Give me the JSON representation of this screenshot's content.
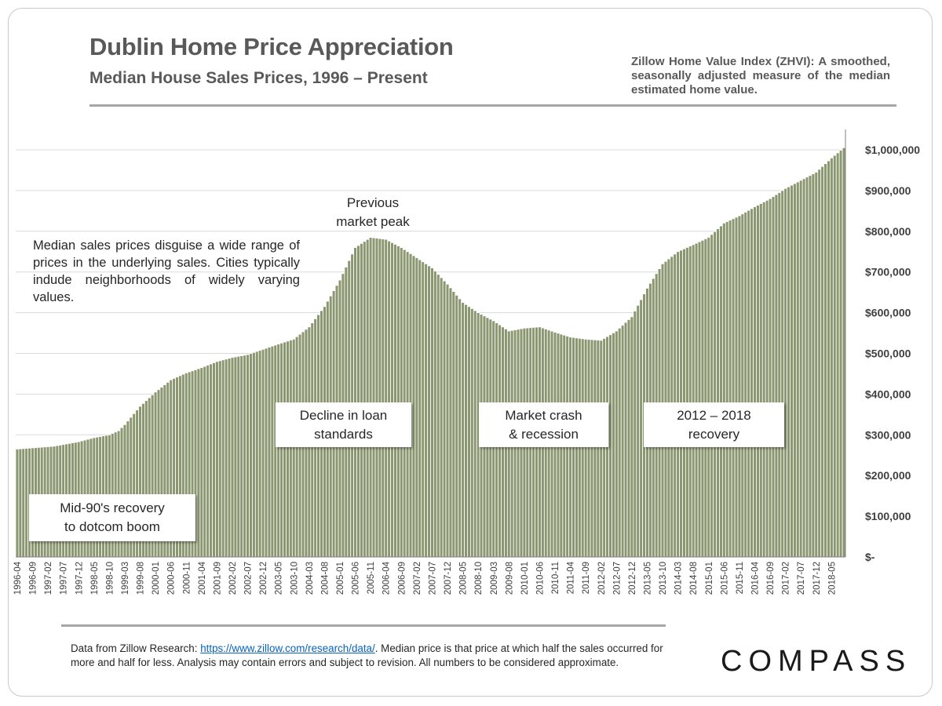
{
  "header": {
    "title": "Dublin Home Price Appreciation",
    "subtitle": "Median House Sales Prices, 1996 – Present",
    "zhvi_note": "Zillow Home Value Index (ZHVI): A smoothed, seasonally adjusted measure of the median estimated home value."
  },
  "annotations": {
    "median_note": "Median sales prices disguise a wide range of prices in the underlying sales. Cities typically indude neighborhoods of widely varying values.",
    "peak_label": "Previous\nmarket peak",
    "callout_1": "Mid-90's recovery\nto dotcom boom",
    "callout_2": "Decline in loan\nstandards",
    "callout_3": "Market crash\n& recession",
    "callout_4": "2012 – 2018\nrecovery"
  },
  "footer": {
    "footnote_prefix": "Data from Zillow Research: ",
    "footnote_link": "https://www.zillow.com/research/data/",
    "footnote_suffix": ". Median price is that price at which half the sales occurred for more and half for less. Analysis may contain errors and subject to revision. All numbers to be considered approximate.",
    "logo": "COMPASS"
  },
  "colors": {
    "bar_fill": "#8b9770",
    "bar_stroke": "#ffffff",
    "gridline": "#d9d9d9",
    "text": "#262626",
    "rule": "#a6a6a6",
    "link": "#0563c1"
  },
  "chart_data": {
    "type": "bar",
    "title": "Dublin Home Price Appreciation",
    "subtitle": "Median House Sales Prices, 1996 – Present",
    "xlabel": "",
    "ylabel": "",
    "x_start": "1996-04",
    "x_end": "2018-09",
    "x_frequency": "monthly",
    "x_tick_labels": [
      "1996-04",
      "1996-09",
      "1997-02",
      "1997-07",
      "1997-12",
      "1998-05",
      "1998-10",
      "1999-03",
      "1999-08",
      "2000-01",
      "2000-06",
      "2000-11",
      "2001-04",
      "2001-09",
      "2002-02",
      "2002-07",
      "2002-12",
      "2003-05",
      "2003-10",
      "2004-03",
      "2004-08",
      "2005-01",
      "2005-06",
      "2005-11",
      "2006-04",
      "2006-09",
      "2007-02",
      "2007-07",
      "2007-12",
      "2008-05",
      "2008-10",
      "2009-03",
      "2009-08",
      "2010-01",
      "2010-06",
      "2010-11",
      "2011-04",
      "2011-09",
      "2012-02",
      "2012-07",
      "2012-12",
      "2013-05",
      "2013-10",
      "2014-03",
      "2014-08",
      "2015-01",
      "2015-06",
      "2015-11",
      "2016-04",
      "2016-09",
      "2017-02",
      "2017-07",
      "2017-12",
      "2018-05"
    ],
    "anchor_values": [
      [
        "1996-04",
        265000
      ],
      [
        "1997-04",
        272000
      ],
      [
        "1997-12",
        283000
      ],
      [
        "1998-05",
        293000
      ],
      [
        "1998-10",
        300000
      ],
      [
        "1999-01",
        310000
      ],
      [
        "1999-03",
        325000
      ],
      [
        "1999-08",
        370000
      ],
      [
        "2000-01",
        405000
      ],
      [
        "2000-06",
        435000
      ],
      [
        "2000-11",
        452000
      ],
      [
        "2001-04",
        465000
      ],
      [
        "2001-09",
        480000
      ],
      [
        "2002-02",
        490000
      ],
      [
        "2002-07",
        497000
      ],
      [
        "2002-12",
        510000
      ],
      [
        "2003-05",
        523000
      ],
      [
        "2003-10",
        535000
      ],
      [
        "2004-03",
        565000
      ],
      [
        "2004-08",
        615000
      ],
      [
        "2005-01",
        680000
      ],
      [
        "2005-06",
        760000
      ],
      [
        "2005-11",
        785000
      ],
      [
        "2006-04",
        780000
      ],
      [
        "2006-09",
        760000
      ],
      [
        "2007-02",
        735000
      ],
      [
        "2007-07",
        710000
      ],
      [
        "2007-12",
        670000
      ],
      [
        "2008-05",
        625000
      ],
      [
        "2008-10",
        600000
      ],
      [
        "2009-03",
        580000
      ],
      [
        "2009-08",
        555000
      ],
      [
        "2010-01",
        562000
      ],
      [
        "2010-06",
        565000
      ],
      [
        "2010-11",
        552000
      ],
      [
        "2011-04",
        540000
      ],
      [
        "2011-09",
        535000
      ],
      [
        "2012-02",
        532000
      ],
      [
        "2012-07",
        555000
      ],
      [
        "2012-12",
        590000
      ],
      [
        "2013-05",
        660000
      ],
      [
        "2013-10",
        720000
      ],
      [
        "2014-03",
        750000
      ],
      [
        "2014-08",
        767000
      ],
      [
        "2015-01",
        785000
      ],
      [
        "2015-06",
        820000
      ],
      [
        "2015-11",
        838000
      ],
      [
        "2016-04",
        860000
      ],
      [
        "2016-09",
        880000
      ],
      [
        "2017-02",
        905000
      ],
      [
        "2017-07",
        925000
      ],
      [
        "2017-12",
        945000
      ],
      [
        "2018-05",
        980000
      ],
      [
        "2018-09",
        1005000
      ]
    ],
    "y_ticks": [
      0,
      100000,
      200000,
      300000,
      400000,
      500000,
      600000,
      700000,
      800000,
      900000,
      1000000
    ],
    "y_tick_labels": [
      "$-",
      "$100,000",
      "$200,000",
      "$300,000",
      "$400,000",
      "$500,000",
      "$600,000",
      "$700,000",
      "$800,000",
      "$900,000",
      "$1,000,000"
    ],
    "ylim": [
      0,
      1050000
    ],
    "y_axis_side": "right",
    "grid": true,
    "legend": "none"
  }
}
